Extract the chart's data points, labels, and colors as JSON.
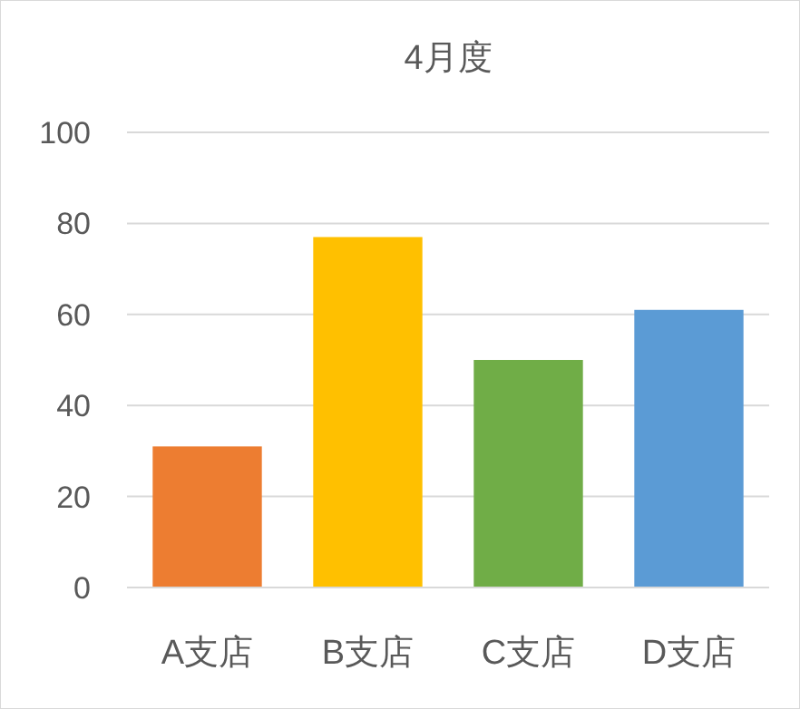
{
  "chart_data": {
    "type": "bar",
    "title": "4月度",
    "categories": [
      "A支店",
      "B支店",
      "C支店",
      "D支店"
    ],
    "values": [
      31,
      77,
      50,
      61
    ],
    "colors": [
      "#ed7d31",
      "#ffc000",
      "#70ad47",
      "#5b9bd5"
    ],
    "ylim": [
      0,
      100
    ],
    "yticks": [
      0,
      20,
      40,
      60,
      80,
      100
    ],
    "grid": "y"
  }
}
